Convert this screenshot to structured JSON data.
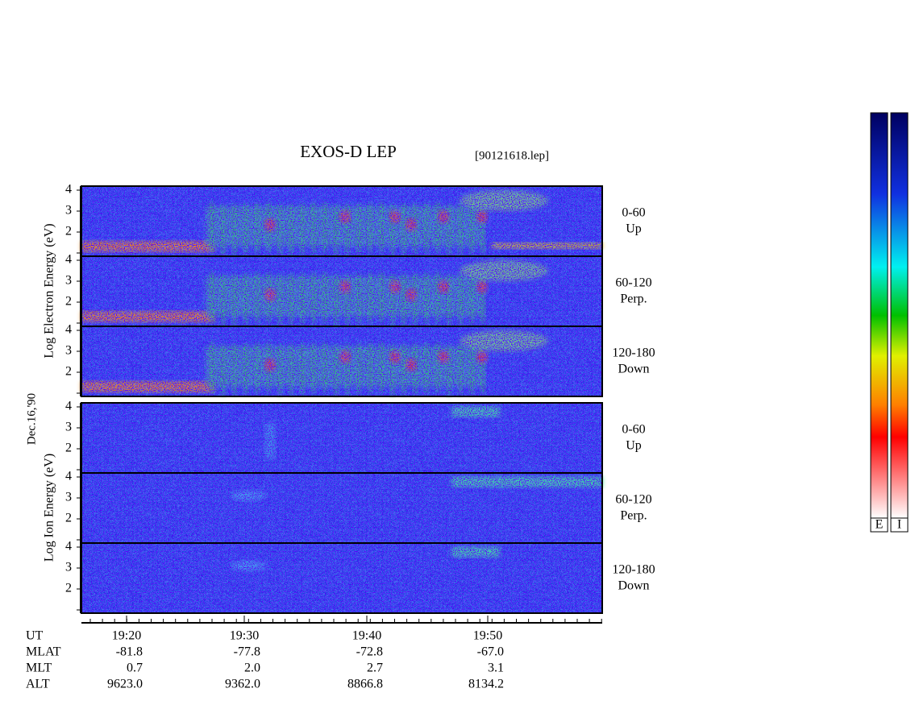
{
  "header": {
    "title": "EXOS-D LEP",
    "file": "[90121618.lep]"
  },
  "date": "Dec.16,'90",
  "groups": [
    {
      "ylabel": "Log Electron Energy (eV)",
      "yticks": [
        "2",
        "3",
        "4"
      ],
      "panels": [
        {
          "label": "0-60",
          "direction": "Up"
        },
        {
          "label": "60-120",
          "direction": "Perp."
        },
        {
          "label": "120-180",
          "direction": "Down"
        }
      ]
    },
    {
      "ylabel": "Log Ion Energy (eV)",
      "yticks": [
        "2",
        "3",
        "4"
      ],
      "panels": [
        {
          "label": "0-60",
          "direction": "Up"
        },
        {
          "label": "60-120",
          "direction": "Perp."
        },
        {
          "label": "120-180",
          "direction": "Down"
        }
      ]
    }
  ],
  "colorbars": [
    "E",
    "I"
  ],
  "orbit": [
    {
      "name": "UT",
      "values": [
        "19:20",
        "19:30",
        "19:40",
        "19:50"
      ]
    },
    {
      "name": "MLAT",
      "values": [
        "-81.8",
        "-77.8",
        "-72.8",
        "-67.0"
      ]
    },
    {
      "name": "MLT",
      "values": [
        "0.7",
        "2.0",
        "2.7",
        "3.1"
      ]
    },
    {
      "name": "ALT",
      "values": [
        "9623.0",
        "9362.0",
        "8866.8",
        "8134.2"
      ]
    }
  ]
}
